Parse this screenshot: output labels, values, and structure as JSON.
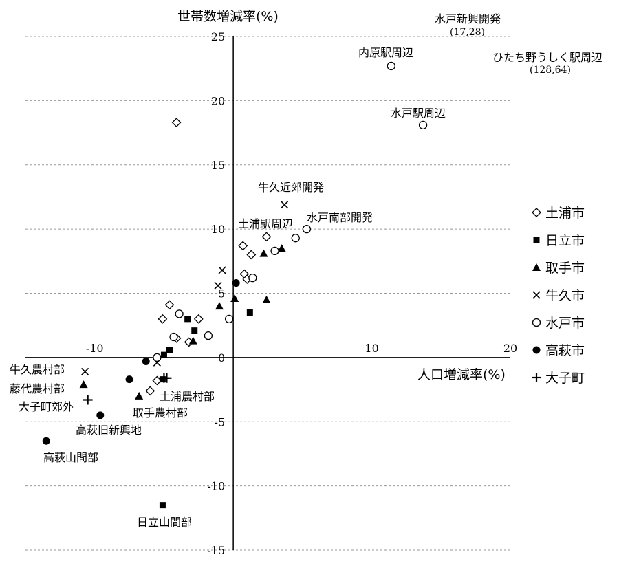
{
  "chart_data": {
    "type": "scatter",
    "title": "",
    "xlabel": "人口増減率(%)",
    "ylabel": "世帯数増減率(%)",
    "xlim": [
      -15,
      20
    ],
    "ylim": [
      -15,
      25
    ],
    "x_ticks": [
      {
        "value": -10,
        "label": "-10"
      },
      {
        "value": 10,
        "label": "10"
      },
      {
        "value": 20,
        "label": "20"
      }
    ],
    "y_ticks": [
      {
        "value": 25,
        "label": "25"
      },
      {
        "value": 20,
        "label": "20"
      },
      {
        "value": 15,
        "label": "15"
      },
      {
        "value": 10,
        "label": "10"
      },
      {
        "value": 5,
        "label": "5"
      },
      {
        "value": 0,
        "label": "0"
      },
      {
        "value": -5,
        "label": "-5"
      },
      {
        "value": -10,
        "label": "-10"
      },
      {
        "value": -15,
        "label": "-15"
      }
    ],
    "grid": "horizontal dashed",
    "legend_position": "right",
    "series": [
      {
        "name": "土浦市",
        "marker": "diamond-open",
        "points": [
          [
            -4.1,
            18.3
          ],
          [
            0.7,
            8.7
          ],
          [
            1.3,
            8.0
          ],
          [
            2.4,
            9.4
          ],
          [
            0.8,
            6.5
          ],
          [
            1.0,
            6.1
          ],
          [
            -4.6,
            4.1
          ],
          [
            -5.1,
            3.0
          ],
          [
            -2.5,
            3.0
          ],
          [
            -4.1,
            1.5
          ],
          [
            -3.2,
            1.2
          ],
          [
            -5.5,
            -1.8
          ],
          [
            -6.0,
            -2.6
          ]
        ]
      },
      {
        "name": "日立市",
        "marker": "square-filled",
        "points": [
          [
            -3.3,
            3.0
          ],
          [
            -2.8,
            2.1
          ],
          [
            1.2,
            3.5
          ],
          [
            -4.6,
            0.6
          ],
          [
            -5.0,
            0.2
          ],
          [
            -5.1,
            -1.7
          ],
          [
            -5.1,
            -11.5
          ]
        ]
      },
      {
        "name": "取手市",
        "marker": "triangle-filled",
        "points": [
          [
            2.2,
            8.1
          ],
          [
            3.5,
            8.5
          ],
          [
            -1.0,
            4.0
          ],
          [
            0.1,
            4.6
          ],
          [
            2.4,
            4.5
          ],
          [
            -2.9,
            1.3
          ],
          [
            -6.8,
            -3.0
          ],
          [
            -10.8,
            -2.1
          ]
        ]
      },
      {
        "name": "牛久市",
        "marker": "x",
        "points": [
          [
            3.7,
            11.9
          ],
          [
            -0.8,
            6.8
          ],
          [
            -1.1,
            5.6
          ],
          [
            -5.5,
            -0.4
          ],
          [
            -10.7,
            -1.1
          ]
        ]
      },
      {
        "name": "水戸市",
        "marker": "circle-open",
        "points": [
          [
            11.4,
            22.7
          ],
          [
            13.7,
            18.1
          ],
          [
            5.3,
            10.0
          ],
          [
            4.5,
            9.3
          ],
          [
            3.0,
            8.3
          ],
          [
            1.4,
            6.2
          ],
          [
            -0.3,
            3.0
          ],
          [
            -1.8,
            1.7
          ],
          [
            -3.9,
            3.4
          ],
          [
            -4.3,
            1.6
          ],
          [
            -5.5,
            0.0
          ]
        ]
      },
      {
        "name": "高萩市",
        "marker": "circle-filled",
        "points": [
          [
            0.2,
            5.8
          ],
          [
            -6.3,
            -0.3
          ],
          [
            -7.5,
            -1.7
          ],
          [
            -9.6,
            -4.5
          ],
          [
            -13.5,
            -6.5
          ]
        ]
      },
      {
        "name": "大子町",
        "marker": "plus",
        "points": [
          [
            -5.0,
            -1.6
          ],
          [
            -4.8,
            -1.6
          ],
          [
            -10.5,
            -3.3
          ]
        ]
      }
    ],
    "annotations": [
      {
        "label": "水戸新興開発",
        "sub": "(17,28)"
      },
      {
        "label": "内原駅周辺"
      },
      {
        "label": "ひたち野うしく駅周辺",
        "sub": "(128,64)"
      },
      {
        "label": "水戸駅周辺"
      },
      {
        "label": "牛久近郊開発"
      },
      {
        "label": "土浦駅周辺"
      },
      {
        "label": "水戸南部開発"
      },
      {
        "label": "牛久農村部"
      },
      {
        "label": "藤代農村部"
      },
      {
        "label": "大子町郊外"
      },
      {
        "label": "土浦農村部"
      },
      {
        "label": "取手農村部"
      },
      {
        "label": "高萩旧新興地"
      },
      {
        "label": "高萩山間部"
      },
      {
        "label": "日立山間部"
      }
    ]
  }
}
